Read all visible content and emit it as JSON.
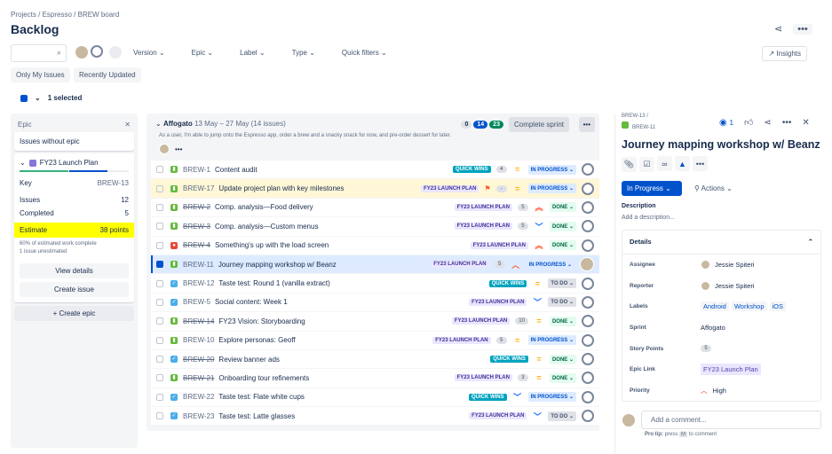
{
  "breadcrumb": [
    "Projects",
    "Espresso",
    "BREW board"
  ],
  "page_title": "Backlog",
  "filters": {
    "version": "Version",
    "epic": "Epic",
    "label": "Label",
    "type": "Type",
    "quick": "Quick filters",
    "only_mine": "Only My Issues",
    "recent": "Recently Updated",
    "insights": "Insights",
    "selected": "1 selected"
  },
  "epic_panel": {
    "title": "Epic",
    "without": "Issues without epic",
    "epic_name": "FY23 Launch Plan",
    "epic_color": "#8777d9",
    "progress": {
      "done_pct": 45,
      "in_progress_pct": 35
    },
    "key_label": "Key",
    "key": "BREW-13",
    "issues_label": "Issues",
    "issues": "12",
    "completed_label": "Completed",
    "completed": "5",
    "estimate_label": "Estimate",
    "estimate": "38 points",
    "pct_note": "60% of estimated work complete",
    "unestimated": "1 issue unestimated",
    "view_details": "View details",
    "create_issue": "Create issue",
    "create_epic": "+ Create epic"
  },
  "sprint": {
    "name": "Affogato",
    "dates": "13 May – 27 May",
    "count": "(14 issues)",
    "goal": "As a user, I'm able to jump onto the Espresso app, order a brew and a snacky snack for now, and pre-order dessert for later.",
    "todo": "0",
    "inprog": "14",
    "done": "23",
    "complete": "Complete sprint",
    "rows": [
      {
        "key": "BREW-1",
        "summary": "Content audit",
        "type": "story",
        "done": false,
        "label": "QUICK WINS",
        "points": "4",
        "prio": "medium",
        "status": "IN PROGRESS",
        "assignee": "none"
      },
      {
        "key": "BREW-17",
        "summary": "Update project plan with key milestones",
        "type": "story",
        "done": false,
        "label": "FY23 LAUNCH PLAN",
        "flag": true,
        "points": "-",
        "prio": "medium",
        "status": "IN PROGRESS",
        "assignee": "none",
        "highlight": true
      },
      {
        "key": "BREW-2",
        "summary": "Comp. analysis—Food delivery",
        "type": "story",
        "done": true,
        "label": "FY23 LAUNCH PLAN",
        "points": "5",
        "prio": "highest",
        "status": "DONE",
        "assignee": "none"
      },
      {
        "key": "BREW-3",
        "summary": "Comp. analysis—Custom menus",
        "type": "story",
        "done": true,
        "label": "FY23 LAUNCH PLAN",
        "points": "5",
        "prio": "low",
        "status": "DONE",
        "assignee": "none"
      },
      {
        "key": "BREW-4",
        "summary": "Something's up with the load screen",
        "type": "bug",
        "done": true,
        "label": "FY23 LAUNCH PLAN",
        "points": "",
        "prio": "highest",
        "status": "DONE",
        "assignee": "none"
      },
      {
        "key": "BREW-11",
        "summary": "Journey mapping workshop w/ Beanz",
        "type": "story",
        "done": false,
        "label": "FY23 LAUNCH PLAN",
        "points": "5",
        "prio": "high",
        "status": "IN PROGRESS",
        "assignee": "photo",
        "selected": true
      },
      {
        "key": "BREW-12",
        "summary": "Taste test: Round 1 (vanilla extract)",
        "type": "task",
        "done": false,
        "label": "QUICK WINS",
        "points": "",
        "prio": "medium",
        "status": "TO DO",
        "assignee": "none"
      },
      {
        "key": "BREW-5",
        "summary": "Social content: Week 1",
        "type": "task",
        "done": false,
        "label": "FY23 LAUNCH PLAN",
        "points": "",
        "prio": "low",
        "status": "TO DO",
        "assignee": "none"
      },
      {
        "key": "BREW-14",
        "summary": "FY23 Vision: Storyboarding",
        "type": "story",
        "done": true,
        "label": "FY23 LAUNCH PLAN",
        "points": "10",
        "prio": "medium",
        "status": "DONE",
        "assignee": "none"
      },
      {
        "key": "BREW-10",
        "summary": "Explore personas: Geoff",
        "type": "story",
        "done": false,
        "label": "FY23 LAUNCH PLAN",
        "points": "5",
        "prio": "medium",
        "status": "IN PROGRESS",
        "assignee": "none"
      },
      {
        "key": "BREW-20",
        "summary": "Review banner ads",
        "type": "task",
        "done": true,
        "label": "QUICK WINS",
        "points": "",
        "prio": "medium",
        "status": "DONE",
        "assignee": "none"
      },
      {
        "key": "BREW-21",
        "summary": "Onboarding tour refinements",
        "type": "story",
        "done": true,
        "label": "FY23 LAUNCH PLAN",
        "points": "3",
        "prio": "medium",
        "status": "DONE",
        "assignee": "none"
      },
      {
        "key": "BREW-22",
        "summary": "Taste test: Flate white cups",
        "type": "task",
        "done": false,
        "label": "QUICK WINS",
        "points": "",
        "prio": "low",
        "status": "IN PROGRESS",
        "assignee": "none"
      },
      {
        "key": "BREW-23",
        "summary": "Taste test: Latte glasses",
        "type": "task",
        "done": false,
        "label": "FY23 LAUNCH PLAN",
        "points": "",
        "prio": "low",
        "status": "TO DO",
        "assignee": "none"
      }
    ]
  },
  "detail": {
    "parent": "BREW-13",
    "key": "BREW-11",
    "watchers": "1",
    "title": "Journey mapping workshop w/ Beanz",
    "status": "In Progress",
    "actions": "Actions",
    "desc_label": "Description",
    "desc_placeholder": "Add a description...",
    "details": "Details",
    "fields": {
      "assignee_label": "Assignee",
      "assignee": "Jessie Spiteri",
      "reporter_label": "Reporter",
      "reporter": "Jessie Spiteri",
      "labels_label": "Labels",
      "labels": [
        "Android",
        "Workshop",
        "iOS"
      ],
      "sprint_label": "Sprint",
      "sprint": "Affogato",
      "points_label": "Story Points",
      "points": "5",
      "epic_label": "Epic Link",
      "epic": "FY23 Launch Plan",
      "priority_label": "Priority",
      "priority": "High"
    },
    "comment_placeholder": "Add a comment...",
    "tip_pre": "Pro tip:",
    "tip_mid": "press",
    "tip_key": "M",
    "tip_post": "to comment"
  }
}
